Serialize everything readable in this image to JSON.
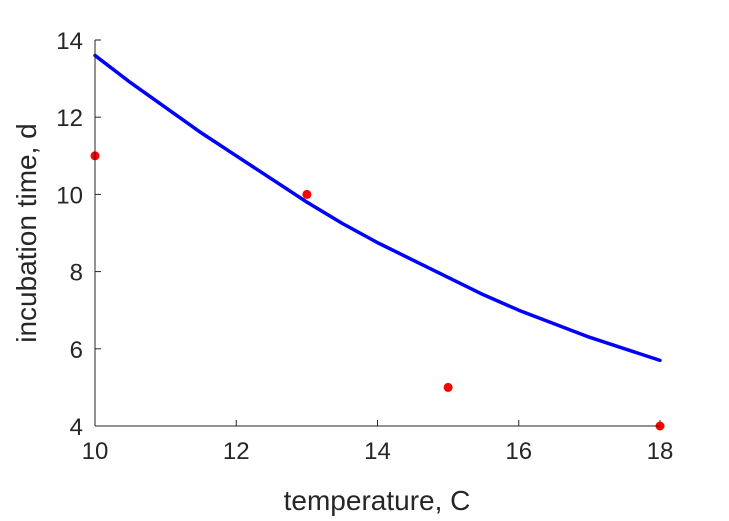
{
  "chart_data": {
    "type": "line",
    "title": "",
    "xlabel": "temperature, C",
    "ylabel": "incubation time, d",
    "xlim": [
      10,
      18
    ],
    "ylim": [
      4,
      14
    ],
    "xticks": [
      10,
      12,
      14,
      16,
      18
    ],
    "yticks": [
      4,
      6,
      8,
      10,
      12,
      14
    ],
    "grid": false,
    "series": [
      {
        "kind": "line",
        "color": "#0000ff",
        "x": [
          10,
          10.5,
          11,
          11.5,
          12,
          12.5,
          13,
          13.5,
          14,
          14.5,
          15,
          15.5,
          16,
          16.5,
          17,
          17.5,
          18
        ],
        "y": [
          13.6,
          12.9,
          12.25,
          11.6,
          11.0,
          10.4,
          9.8,
          9.25,
          8.75,
          8.3,
          7.85,
          7.4,
          7.0,
          6.65,
          6.3,
          6.0,
          5.7
        ]
      },
      {
        "kind": "scatter",
        "color": "#ff0000",
        "x": [
          10,
          13,
          15,
          18
        ],
        "y": [
          11,
          10,
          5,
          4
        ]
      }
    ]
  }
}
